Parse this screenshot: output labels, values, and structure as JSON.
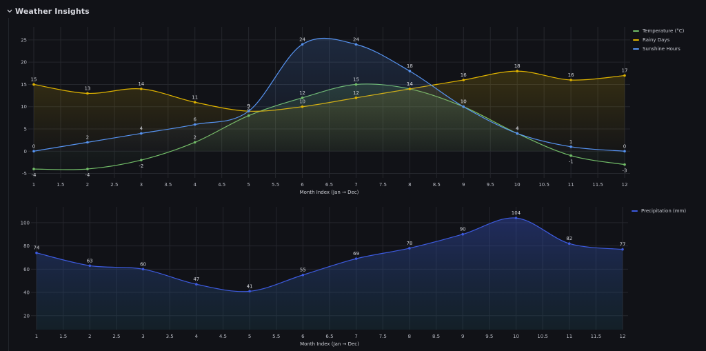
{
  "panel": {
    "title": "Weather Insights"
  },
  "colors": {
    "temperature": "#73bf69",
    "rainy": "#e0b400",
    "sunshine": "#5794f2",
    "precip": "#3d5be0",
    "grid": "#25272d",
    "tick": "#b8bac3",
    "label": "#d0d2d8"
  },
  "chart_data": [
    {
      "type": "line",
      "xlabel": "Month Index (Jan → Dec)",
      "ylabel": "",
      "xlim": [
        1,
        12
      ],
      "ylim": [
        -6,
        27
      ],
      "xticks": [
        "1",
        "1.5",
        "2",
        "2.5",
        "3",
        "3.5",
        "4",
        "4.5",
        "5",
        "5.5",
        "6",
        "6.5",
        "7",
        "7.5",
        "8",
        "8.5",
        "9",
        "9.5",
        "10",
        "10.5",
        "11",
        "11.5",
        "12"
      ],
      "yticks": [
        "-5",
        "0",
        "5",
        "10",
        "15",
        "20",
        "25"
      ],
      "x": [
        1,
        2,
        3,
        4,
        5,
        6,
        7,
        8,
        9,
        10,
        11,
        12
      ],
      "series": [
        {
          "name": "Temperature (°C)",
          "values": [
            -4,
            -4,
            -2,
            2,
            8,
            12,
            15,
            14,
            10,
            4,
            -1,
            -3
          ]
        },
        {
          "name": "Rainy Days",
          "values": [
            15,
            13,
            14,
            11,
            9,
            10,
            12,
            14,
            16,
            18,
            16,
            17
          ]
        },
        {
          "name": "Sunshine Hours",
          "values": [
            0,
            2,
            4,
            6,
            9,
            24,
            24,
            18,
            10,
            4,
            1,
            0
          ]
        }
      ],
      "legend_position": "top-right",
      "grid": true
    },
    {
      "type": "area",
      "xlabel": "Month Index (Jan → Dec)",
      "ylabel": "",
      "xlim": [
        1,
        12
      ],
      "ylim": [
        8,
        110
      ],
      "xticks": [
        "1",
        "1.5",
        "2",
        "2.5",
        "3",
        "3.5",
        "4",
        "4.5",
        "5",
        "5.5",
        "6",
        "6.5",
        "7",
        "7.5",
        "8",
        "8.5",
        "9",
        "9.5",
        "10",
        "10.5",
        "11",
        "11.5",
        "12"
      ],
      "yticks": [
        "20",
        "40",
        "60",
        "80",
        "100"
      ],
      "x": [
        1,
        2,
        3,
        4,
        5,
        6,
        7,
        8,
        9,
        10,
        11,
        12
      ],
      "series": [
        {
          "name": "Precipitation (mm)",
          "values": [
            74,
            63,
            60,
            47,
            41,
            55,
            69,
            78,
            90,
            104,
            82,
            77
          ]
        }
      ],
      "legend_position": "top-right",
      "grid": true
    }
  ]
}
